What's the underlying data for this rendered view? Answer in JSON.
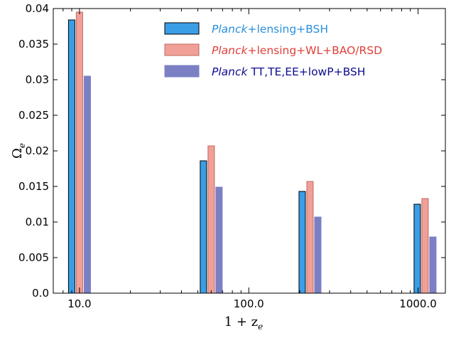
{
  "chart_data": {
    "type": "bar",
    "xscale": "log",
    "x_categories": [
      10,
      60,
      230,
      1100
    ],
    "xlim": [
      7,
      1450
    ],
    "ylim": [
      0,
      0.04
    ],
    "xlabel_main": "1 + z",
    "xlabel_sub": "e",
    "ylabel_main": "Ω",
    "ylabel_sub": "e",
    "x_ticks": [
      {
        "value": 10,
        "label": "10.0"
      },
      {
        "value": 100,
        "label": "100.0"
      },
      {
        "value": 1000,
        "label": "1000.0"
      }
    ],
    "y_ticks": [
      {
        "value": 0.0,
        "label": "0.0"
      },
      {
        "value": 0.005,
        "label": "0.005"
      },
      {
        "value": 0.01,
        "label": "0.01"
      },
      {
        "value": 0.015,
        "label": "0.015"
      },
      {
        "value": 0.02,
        "label": "0.02"
      },
      {
        "value": 0.025,
        "label": "0.025"
      },
      {
        "value": 0.03,
        "label": "0.03"
      },
      {
        "value": 0.035,
        "label": "0.035"
      },
      {
        "value": 0.04,
        "label": "0.04"
      }
    ],
    "grid": false,
    "legend_position": "top-right",
    "series": [
      {
        "label_italic": "Planck",
        "label_rest": "+lensing+BSH",
        "color": "#3a9ee6",
        "edge": "#000000",
        "label_color": "#2a8fdc",
        "values": [
          0.0384,
          0.0186,
          0.0143,
          0.0125
        ]
      },
      {
        "label_italic": "Planck",
        "label_rest": "+lensing+WL+BAO/RSD",
        "color": "#f0a096",
        "edge": "#c06a60",
        "label_color": "#e0403a",
        "values": [
          0.0395,
          0.0207,
          0.0157,
          0.0133
        ]
      },
      {
        "label_italic": "Planck",
        "label_rest": " TT,TE,EE+lowP+BSH",
        "color": "#7b7fc4",
        "edge": "#7b7fc4",
        "label_color": "#0d0d8f",
        "values": [
          0.0305,
          0.0149,
          0.0107,
          0.0079
        ]
      }
    ]
  }
}
